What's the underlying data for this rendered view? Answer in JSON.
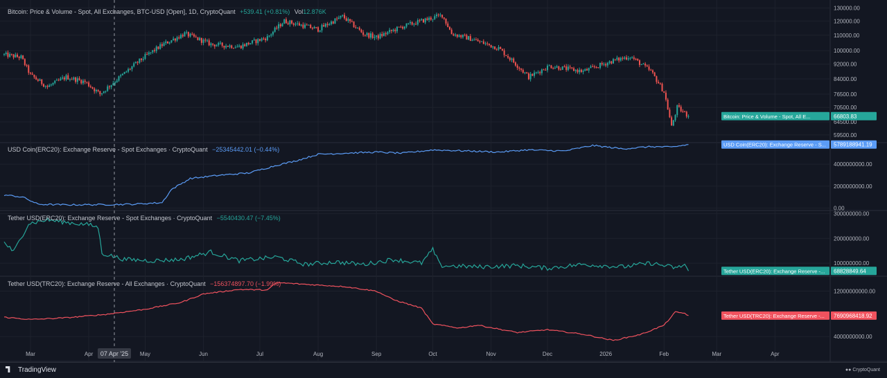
{
  "colors": {
    "up": "#26a69a",
    "down": "#ef5350",
    "usdc": "#5b9cf6",
    "usdt_erc20": "#26a69a",
    "usdt_trc20": "#f0525e",
    "grid": "#1e222d",
    "axis_text": "#b2b5be",
    "separator": "#2a2e39"
  },
  "header": {
    "brand": "TradingView",
    "data_brand": "CryptoQuant",
    "brand_icon": "tradingview-logo-icon",
    "data_brand_icon": "cryptoquant-logo-icon"
  },
  "crosshair": {
    "date_label": "07 Apr '25",
    "date": "2025-04-07"
  },
  "x_axis": {
    "ticks": [
      "Mar",
      "Apr",
      "May",
      "Jun",
      "Jul",
      "Aug",
      "Sep",
      "Oct",
      "Nov",
      "Dec",
      "2026",
      "Feb",
      "Mar",
      "Apr"
    ],
    "range": [
      "2025-02-15",
      "2026-04-30"
    ]
  },
  "chart_data": [
    {
      "type": "candlestick",
      "legend": {
        "title": "Bitcoin: Price & Volume - Spot, All Exchanges, BTC-USD [Open], 1D, CryptoQuant",
        "change": "+539.41 (+0.81%)",
        "vol_label": "Vol",
        "vol_value": "12.876K"
      },
      "y_ticks": [
        "130000.00",
        "120000.00",
        "110000.00",
        "100000.00",
        "92000.00",
        "84000.00",
        "76500.00",
        "70500.00",
        "64500.00",
        "59500.00"
      ],
      "ylim": [
        57000,
        132000
      ],
      "scale": "log",
      "last_value_label": "66803.83",
      "series_label": "Bitcoin: Price & Volume - Spot, All E...",
      "path": [
        [
          "2025-02-15",
          97500
        ],
        [
          "2025-02-24",
          96000
        ],
        [
          "2025-03-01",
          86000
        ],
        [
          "2025-03-10",
          80000
        ],
        [
          "2025-03-20",
          85000
        ],
        [
          "2025-03-30",
          82500
        ],
        [
          "2025-04-07",
          76500
        ],
        [
          "2025-04-20",
          87000
        ],
        [
          "2025-05-01",
          96500
        ],
        [
          "2025-05-10",
          103500
        ],
        [
          "2025-05-22",
          111000
        ],
        [
          "2025-06-05",
          104000
        ],
        [
          "2025-06-20",
          102500
        ],
        [
          "2025-07-05",
          108500
        ],
        [
          "2025-07-14",
          120000
        ],
        [
          "2025-08-01",
          114000
        ],
        [
          "2025-08-14",
          123500
        ],
        [
          "2025-08-25",
          111000
        ],
        [
          "2025-09-01",
          108500
        ],
        [
          "2025-09-15",
          116000
        ],
        [
          "2025-10-06",
          124500
        ],
        [
          "2025-10-11",
          111000
        ],
        [
          "2025-10-20",
          108000
        ],
        [
          "2025-11-05",
          101500
        ],
        [
          "2025-11-21",
          85000
        ],
        [
          "2025-12-02",
          91000
        ],
        [
          "2025-12-20",
          88000
        ],
        [
          "2026-01-05",
          94000
        ],
        [
          "2026-01-14",
          96500
        ],
        [
          "2026-01-25",
          88000
        ],
        [
          "2026-02-01",
          77500
        ],
        [
          "2026-02-05",
          62500
        ],
        [
          "2026-02-08",
          70500
        ],
        [
          "2026-02-14",
          66800
        ]
      ]
    },
    {
      "type": "line",
      "legend": {
        "title": "USD Coin(ERC20): Exchange Reserve - Spot Exchanges · CryptoQuant",
        "change": "−25345442.01 (−0.44%)"
      },
      "y_ticks": [
        "4000000000.00",
        "2000000000.00",
        "0.00"
      ],
      "ylim": [
        -150000000,
        5900000000
      ],
      "last_value_label": "5789188941.19",
      "series_label": "USD Coin(ERC20): Exchange Reserve - S...",
      "path": [
        [
          "2025-02-15",
          1200000000
        ],
        [
          "2025-02-25",
          1000000000
        ],
        [
          "2025-03-05",
          350000000
        ],
        [
          "2025-03-20",
          300000000
        ],
        [
          "2025-04-10",
          320000000
        ],
        [
          "2025-04-25",
          360000000
        ],
        [
          "2025-05-10",
          500000000
        ],
        [
          "2025-05-15",
          1700000000
        ],
        [
          "2025-05-25",
          2700000000
        ],
        [
          "2025-06-10",
          3000000000
        ],
        [
          "2025-06-25",
          3200000000
        ],
        [
          "2025-07-10",
          3900000000
        ],
        [
          "2025-07-20",
          4300000000
        ],
        [
          "2025-08-01",
          4900000000
        ],
        [
          "2025-08-15",
          5000000000
        ],
        [
          "2025-09-01",
          5100000000
        ],
        [
          "2025-09-15",
          5000000000
        ],
        [
          "2025-10-01",
          5300000000
        ],
        [
          "2025-10-20",
          5200000000
        ],
        [
          "2025-11-05",
          5100000000
        ],
        [
          "2025-11-20",
          5300000000
        ],
        [
          "2025-12-10",
          5200000000
        ],
        [
          "2025-12-25",
          5700000000
        ],
        [
          "2026-01-10",
          5400000000
        ],
        [
          "2026-01-25",
          5600000000
        ],
        [
          "2026-02-05",
          5550000000
        ],
        [
          "2026-02-14",
          5790000000
        ]
      ]
    },
    {
      "type": "line",
      "legend": {
        "title": "Tether USD(ERC20): Exchange Reserve - Spot Exchanges · CryptoQuant",
        "change": "−5540430.47 (−7.45%)"
      },
      "y_ticks": [
        "300000000.00",
        "200000000.00",
        "100000000.00"
      ],
      "ylim": [
        50000000,
        310000000
      ],
      "last_value_label": "68828849.64",
      "series_label": "Tether USD(ERC20): Exchange Reserve -...",
      "path": [
        [
          "2025-02-15",
          185000000
        ],
        [
          "2025-02-20",
          145000000
        ],
        [
          "2025-02-28",
          260000000
        ],
        [
          "2025-03-10",
          275000000
        ],
        [
          "2025-03-20",
          265000000
        ],
        [
          "2025-04-01",
          255000000
        ],
        [
          "2025-04-06",
          245000000
        ],
        [
          "2025-04-08",
          140000000
        ],
        [
          "2025-04-20",
          115000000
        ],
        [
          "2025-05-05",
          110000000
        ],
        [
          "2025-05-20",
          115000000
        ],
        [
          "2025-06-05",
          145000000
        ],
        [
          "2025-06-20",
          110000000
        ],
        [
          "2025-07-10",
          125000000
        ],
        [
          "2025-07-25",
          95000000
        ],
        [
          "2025-08-10",
          105000000
        ],
        [
          "2025-08-25",
          95000000
        ],
        [
          "2025-09-10",
          115000000
        ],
        [
          "2025-09-25",
          100000000
        ],
        [
          "2025-10-01",
          155000000
        ],
        [
          "2025-10-05",
          90000000
        ],
        [
          "2025-10-25",
          85000000
        ],
        [
          "2025-11-15",
          90000000
        ],
        [
          "2025-12-01",
          80000000
        ],
        [
          "2025-12-20",
          95000000
        ],
        [
          "2026-01-10",
          85000000
        ],
        [
          "2026-01-25",
          100000000
        ],
        [
          "2026-02-08",
          80000000
        ],
        [
          "2026-02-12",
          95000000
        ],
        [
          "2026-02-14",
          68800000
        ]
      ]
    },
    {
      "type": "line",
      "legend": {
        "title": "Tether USD(TRC20): Exchange Reserve - All Exchanges · CryptoQuant",
        "change": "−156374897.70 (−1.99%)"
      },
      "y_ticks": [
        "12000000000.00",
        "4000000000.00"
      ],
      "ylim": [
        2300000000,
        14500000000
      ],
      "last_value_label": "7690968418.92",
      "series_label": "Tether USD(TRC20): Exchange Reserve -...",
      "path": [
        [
          "2025-02-15",
          7400000000
        ],
        [
          "2025-03-01",
          7000000000
        ],
        [
          "2025-03-20",
          7300000000
        ],
        [
          "2025-04-10",
          7900000000
        ],
        [
          "2025-05-01",
          8800000000
        ],
        [
          "2025-05-20",
          10000000000
        ],
        [
          "2025-06-01",
          11500000000
        ],
        [
          "2025-06-20",
          12300000000
        ],
        [
          "2025-07-05",
          12200000000
        ],
        [
          "2025-07-10",
          13500000000
        ],
        [
          "2025-07-25",
          13200000000
        ],
        [
          "2025-08-15",
          12800000000
        ],
        [
          "2025-09-01",
          12000000000
        ],
        [
          "2025-09-10",
          10500000000
        ],
        [
          "2025-09-25",
          9000000000
        ],
        [
          "2025-10-01",
          6200000000
        ],
        [
          "2025-10-15",
          5500000000
        ],
        [
          "2025-10-25",
          6000000000
        ],
        [
          "2025-11-15",
          4700000000
        ],
        [
          "2025-12-01",
          5200000000
        ],
        [
          "2025-12-20",
          4400000000
        ],
        [
          "2026-01-05",
          3300000000
        ],
        [
          "2026-01-20",
          4400000000
        ],
        [
          "2026-02-01",
          6000000000
        ],
        [
          "2026-02-07",
          8300000000
        ],
        [
          "2026-02-12",
          8100000000
        ],
        [
          "2026-02-14",
          7690000000
        ]
      ]
    }
  ]
}
